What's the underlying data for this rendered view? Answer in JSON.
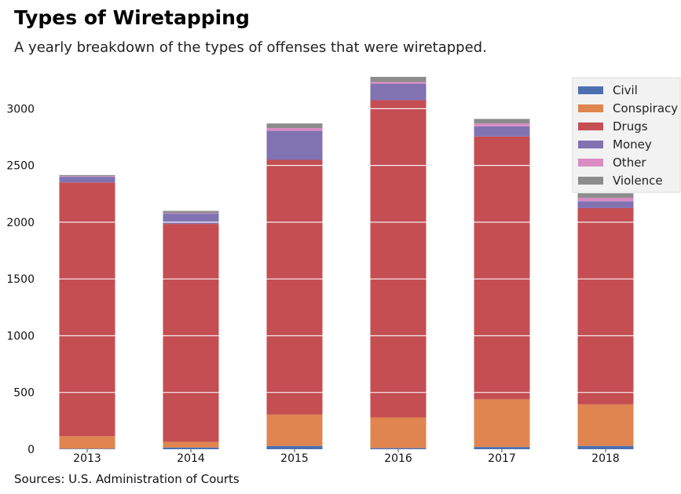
{
  "header": {
    "title": "Types of Wiretapping",
    "subtitle": "A yearly breakdown of the types of offenses that were wiretapped."
  },
  "footer": {
    "source": "Sources: U.S. Administration of Courts"
  },
  "chart_data": {
    "type": "bar",
    "stacked": true,
    "categories": [
      "2013",
      "2014",
      "2015",
      "2016",
      "2017",
      "2018"
    ],
    "ylim": [
      0,
      3300
    ],
    "yticks": [
      0,
      500,
      1000,
      1500,
      2000,
      2500,
      3000
    ],
    "grid": true,
    "legend_position": "top-right",
    "series": [
      {
        "name": "Civil",
        "color": "#4c6fb0",
        "values": [
          5,
          15,
          30,
          10,
          20,
          30
        ]
      },
      {
        "name": "Conspiracy",
        "color": "#e08550",
        "values": [
          110,
          50,
          275,
          270,
          420,
          365
        ]
      },
      {
        "name": "Drugs",
        "color": "#c44e52",
        "values": [
          2235,
          1920,
          2245,
          2795,
          2315,
          1730
        ]
      },
      {
        "name": "Money",
        "color": "#8172b2",
        "values": [
          50,
          90,
          255,
          145,
          90,
          60
        ]
      },
      {
        "name": "Other",
        "color": "#da8bc3",
        "values": [
          5,
          5,
          25,
          15,
          25,
          30
        ]
      },
      {
        "name": "Violence",
        "color": "#8c8c8c",
        "values": [
          10,
          20,
          40,
          45,
          40,
          40
        ]
      }
    ]
  }
}
